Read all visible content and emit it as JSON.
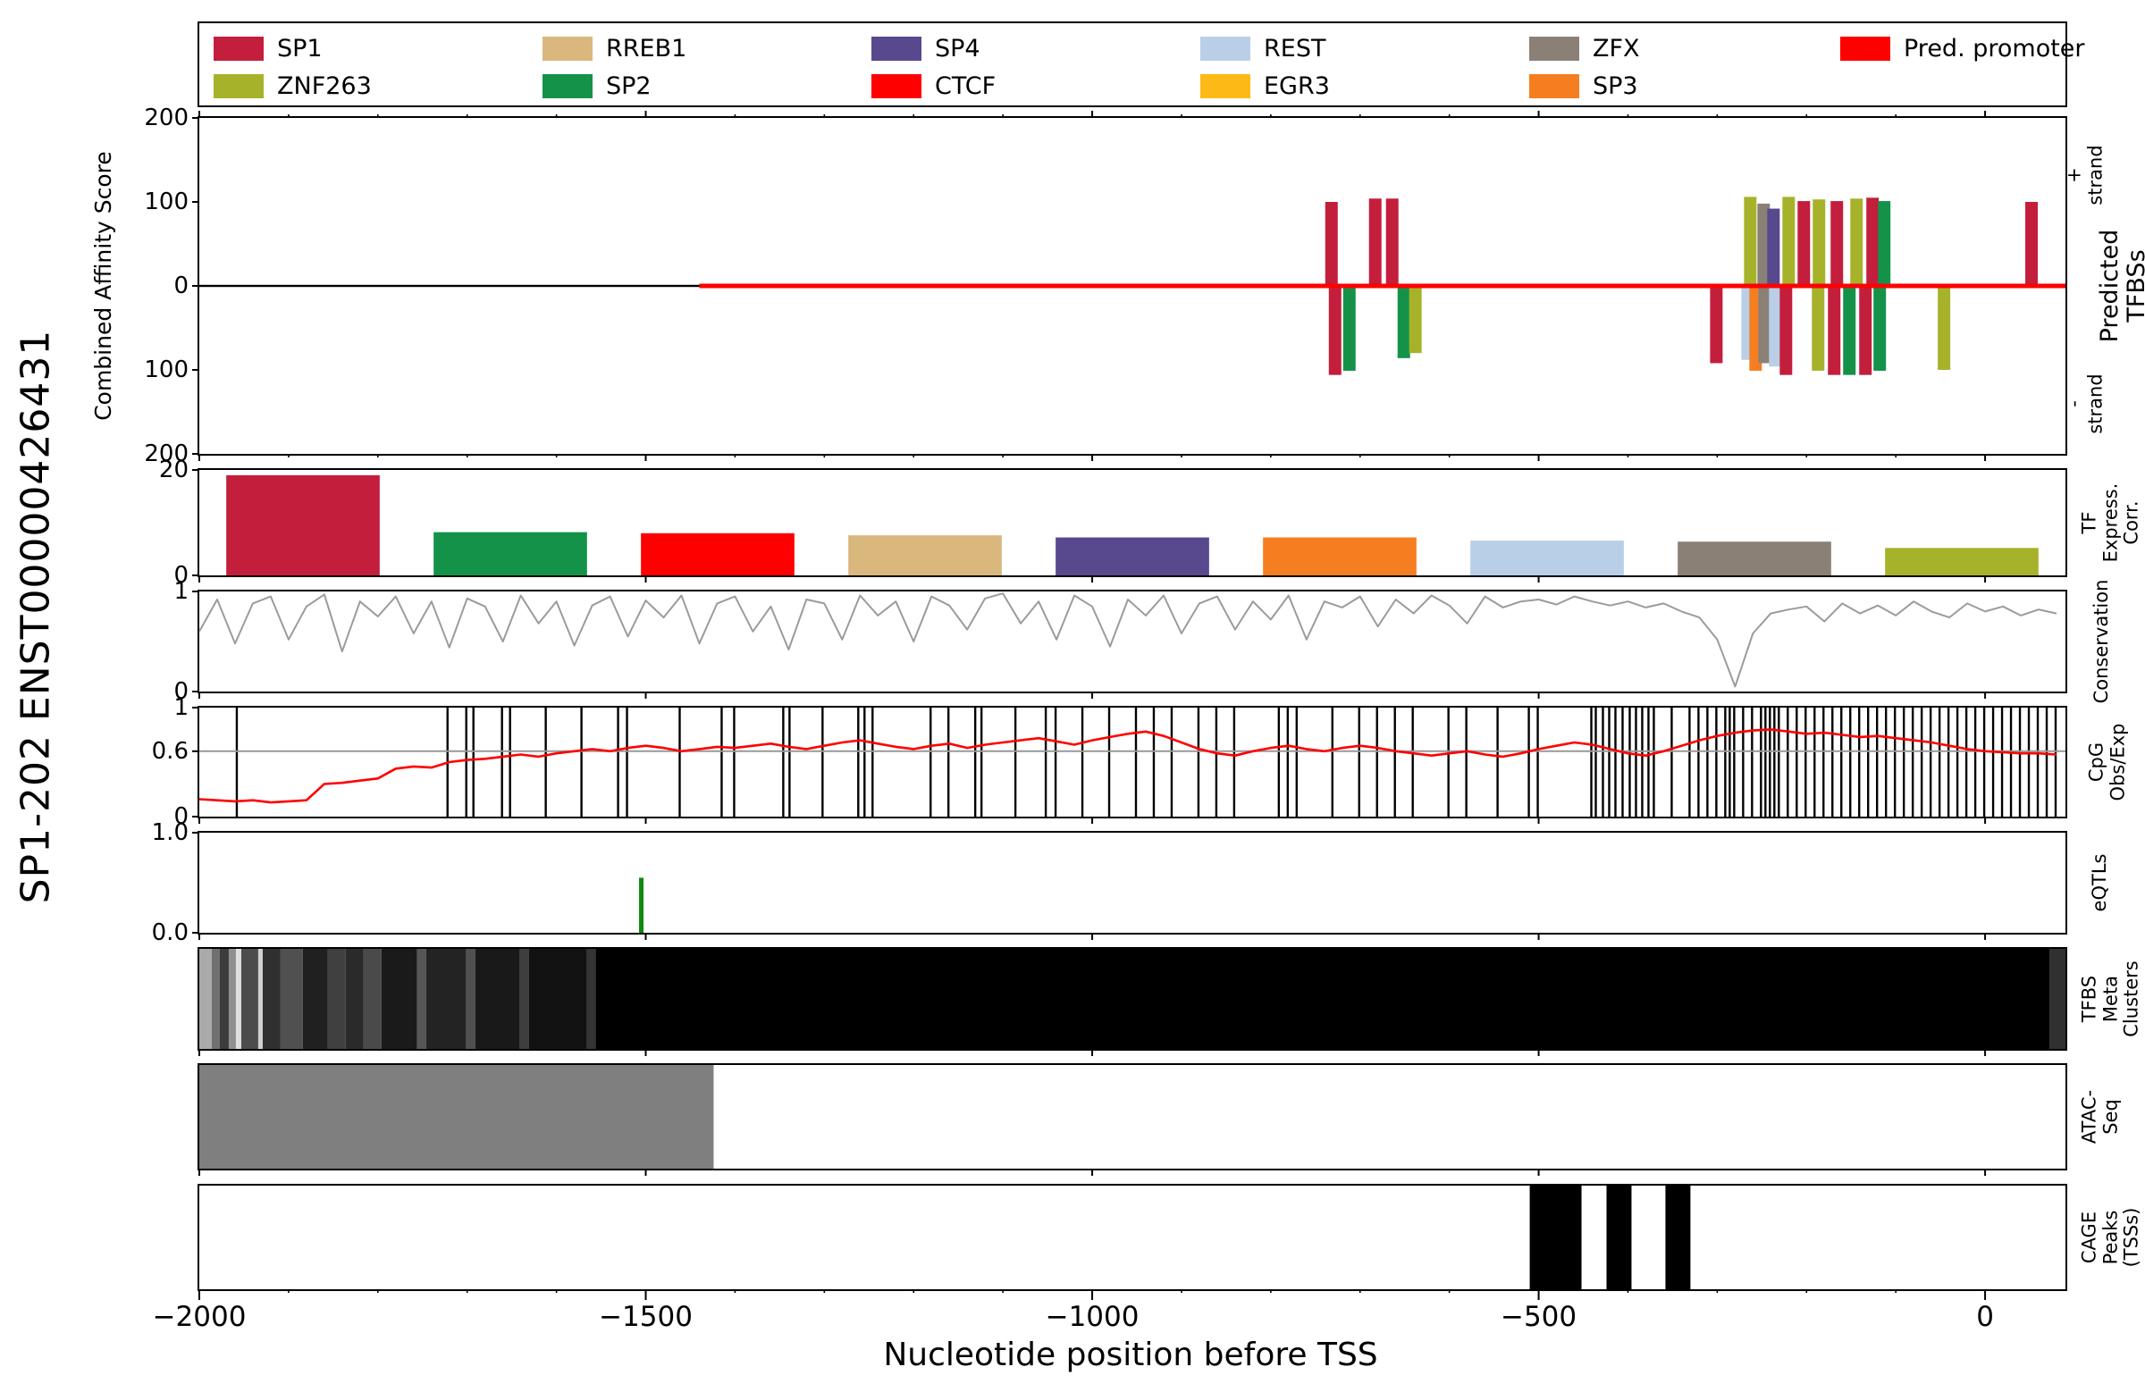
{
  "figure": {
    "transcript_label": "SP1-202 ENST00000426431",
    "xlabel": "Nucleotide position before TSS"
  },
  "colors": {
    "SP1": "#c41e3d",
    "ZNF263": "#a7b22b",
    "RREB1": "#d9b77d",
    "SP2": "#14924a",
    "SP4": "#58488e",
    "CTCF": "#ff0000",
    "REST": "#b9cfe8",
    "EGR3": "#fdb916",
    "ZFX": "#8b8076",
    "SP3": "#f57e20",
    "promoter": "#ff0000",
    "conservation": "#9b9b9b",
    "cpg_line": "#ff0000",
    "cpg_ref": "#999999",
    "eqtl": "#0f8a10",
    "atac": "#7f7f7f",
    "cage": "#000000"
  },
  "legend": {
    "items": [
      {
        "label": "SP1",
        "color": "#c41e3d",
        "row": 0,
        "col": 0
      },
      {
        "label": "RREB1",
        "color": "#d9b77d",
        "row": 0,
        "col": 1
      },
      {
        "label": "SP4",
        "color": "#58488e",
        "row": 0,
        "col": 2
      },
      {
        "label": "REST",
        "color": "#b9cfe8",
        "row": 0,
        "col": 3
      },
      {
        "label": "ZFX",
        "color": "#8b8076",
        "row": 0,
        "col": 4
      },
      {
        "label": "Pred. promoter",
        "color": "#ff0000",
        "row": 0,
        "col": 5
      },
      {
        "label": "ZNF263",
        "color": "#a7b22b",
        "row": 1,
        "col": 0
      },
      {
        "label": "SP2",
        "color": "#14924a",
        "row": 1,
        "col": 1
      },
      {
        "label": "CTCF",
        "color": "#ff0000",
        "row": 1,
        "col": 2
      },
      {
        "label": "EGR3",
        "color": "#fdb916",
        "row": 1,
        "col": 3
      },
      {
        "label": "SP3",
        "color": "#f57e20",
        "row": 1,
        "col": 4
      }
    ]
  },
  "panels": {
    "tfbs": {
      "label": "Predicted TFBSs",
      "strand_plus": "+ strand",
      "strand_minus": "- strand",
      "ylabel": "Combined Affinity Score",
      "yticks": [
        [
          200,
          "200"
        ],
        [
          100,
          "100"
        ],
        [
          0,
          "0"
        ],
        [
          -100,
          "100"
        ],
        [
          -200,
          "200"
        ]
      ]
    },
    "expr": {
      "label": "TF\nExpress.\nCorr.",
      "yticks": [
        [
          0,
          "0"
        ],
        [
          20,
          "20"
        ]
      ]
    },
    "cons": {
      "label": "Conservation",
      "yticks": [
        [
          0,
          "0"
        ],
        [
          1,
          "1"
        ]
      ]
    },
    "cpg": {
      "label": "CpG\nObs/Exp",
      "yticks": [
        [
          0,
          "0"
        ],
        [
          0.6,
          "0.6"
        ],
        [
          1,
          "1"
        ]
      ]
    },
    "eqtl": {
      "label": "eQTLs",
      "yticks": [
        [
          0,
          "0.0"
        ],
        [
          1,
          "1.0"
        ]
      ]
    },
    "meta": {
      "label": "TFBS\nMeta\nClusters",
      "yticks": []
    },
    "atac": {
      "label": "ATAC-Seq",
      "yticks": []
    },
    "cage": {
      "label": "CAGE\nPeaks\n(TSSs)",
      "yticks": []
    }
  },
  "chart_data": {
    "x_range": [
      -2000,
      90
    ],
    "x_major_ticks": [
      -2000,
      -1500,
      -1000,
      -500,
      0
    ],
    "x_tick_labels": [
      "−2000",
      "−1500",
      "−1000",
      "−500",
      "0"
    ],
    "x_minor_step": 100,
    "predicted_tfbs": {
      "type": "bar",
      "ylim": [
        -200,
        200
      ],
      "promoter": {
        "start": -1440,
        "end": 90,
        "y": 0
      },
      "bars": [
        {
          "tf": "SP1",
          "strand": "+",
          "pos": -732,
          "score": 100
        },
        {
          "tf": "SP1",
          "strand": "+",
          "pos": -683,
          "score": 104
        },
        {
          "tf": "SP1",
          "strand": "+",
          "pos": -664,
          "score": 104
        },
        {
          "tf": "ZNF263",
          "strand": "+",
          "pos": -263,
          "score": 106
        },
        {
          "tf": "ZFX",
          "strand": "+",
          "pos": -248,
          "score": 98
        },
        {
          "tf": "SP4",
          "strand": "+",
          "pos": -237,
          "score": 92
        },
        {
          "tf": "ZNF263",
          "strand": "+",
          "pos": -220,
          "score": 106
        },
        {
          "tf": "SP1",
          "strand": "+",
          "pos": -203,
          "score": 101
        },
        {
          "tf": "ZNF263",
          "strand": "+",
          "pos": -186,
          "score": 103
        },
        {
          "tf": "SP1",
          "strand": "+",
          "pos": -166,
          "score": 101
        },
        {
          "tf": "ZNF263",
          "strand": "+",
          "pos": -144,
          "score": 104
        },
        {
          "tf": "SP1",
          "strand": "+",
          "pos": -126,
          "score": 105
        },
        {
          "tf": "SP2",
          "strand": "+",
          "pos": -113,
          "score": 101
        },
        {
          "tf": "SP1",
          "strand": "+",
          "pos": 52,
          "score": 100
        },
        {
          "tf": "SP1",
          "strand": "-",
          "pos": -728,
          "score": 106
        },
        {
          "tf": "SP2",
          "strand": "-",
          "pos": -712,
          "score": 101
        },
        {
          "tf": "SP2",
          "strand": "-",
          "pos": -651,
          "score": 86
        },
        {
          "tf": "ZNF263",
          "strand": "-",
          "pos": -638,
          "score": 80
        },
        {
          "tf": "SP1",
          "strand": "-",
          "pos": -301,
          "score": 92
        },
        {
          "tf": "REST",
          "strand": "-",
          "pos": -266,
          "score": 88
        },
        {
          "tf": "SP3",
          "strand": "-",
          "pos": -257,
          "score": 101
        },
        {
          "tf": "ZFX",
          "strand": "-",
          "pos": -247,
          "score": 92
        },
        {
          "tf": "REST",
          "strand": "-",
          "pos": -235,
          "score": 96
        },
        {
          "tf": "SP1",
          "strand": "-",
          "pos": -223,
          "score": 106
        },
        {
          "tf": "ZNF263",
          "strand": "-",
          "pos": -187,
          "score": 101
        },
        {
          "tf": "SP1",
          "strand": "-",
          "pos": -169,
          "score": 106
        },
        {
          "tf": "SP2",
          "strand": "-",
          "pos": -152,
          "score": 106
        },
        {
          "tf": "SP1",
          "strand": "-",
          "pos": -134,
          "score": 106
        },
        {
          "tf": "SP2",
          "strand": "-",
          "pos": -118,
          "score": 101
        },
        {
          "tf": "ZNF263",
          "strand": "-",
          "pos": -46,
          "score": 100
        }
      ]
    },
    "tf_expression_correlation": {
      "type": "bar",
      "ylim": [
        0,
        20
      ],
      "categories": [
        "SP1",
        "SP2",
        "CTCF",
        "RREB1",
        "SP4",
        "SP3",
        "REST",
        "ZFX",
        "ZNF263"
      ],
      "values": [
        19,
        8.2,
        8,
        7.6,
        7.2,
        7.2,
        6.6,
        6.4,
        5.2
      ]
    },
    "conservation": {
      "type": "line",
      "ylim": [
        0,
        1
      ],
      "x_start": -2000,
      "x_step": 20,
      "values": [
        0.6,
        0.92,
        0.48,
        0.88,
        0.95,
        0.52,
        0.85,
        0.97,
        0.4,
        0.9,
        0.75,
        0.95,
        0.58,
        0.9,
        0.44,
        0.93,
        0.85,
        0.5,
        0.96,
        0.68,
        0.9,
        0.46,
        0.86,
        0.95,
        0.55,
        0.91,
        0.74,
        0.96,
        0.48,
        0.88,
        0.95,
        0.6,
        0.85,
        0.42,
        0.92,
        0.88,
        0.52,
        0.96,
        0.76,
        0.9,
        0.5,
        0.95,
        0.86,
        0.62,
        0.93,
        0.98,
        0.68,
        0.9,
        0.52,
        0.96,
        0.85,
        0.45,
        0.92,
        0.76,
        0.96,
        0.58,
        0.88,
        0.95,
        0.62,
        0.9,
        0.72,
        0.96,
        0.52,
        0.9,
        0.84,
        0.95,
        0.65,
        0.92,
        0.78,
        0.96,
        0.86,
        0.68,
        0.95,
        0.84,
        0.9,
        0.92,
        0.87,
        0.95,
        0.9,
        0.86,
        0.9,
        0.84,
        0.88,
        0.8,
        0.74,
        0.52,
        0.05,
        0.58,
        0.78,
        0.82,
        0.85,
        0.7,
        0.88,
        0.78,
        0.86,
        0.76,
        0.9,
        0.8,
        0.74,
        0.88,
        0.8,
        0.85,
        0.76,
        0.82,
        0.78
      ]
    },
    "cpg_obs_exp": {
      "type": "line",
      "ylim": [
        0,
        1
      ],
      "ref_y": 0.6,
      "x_start": -2000,
      "x_step": 20,
      "values": [
        0.16,
        0.15,
        0.14,
        0.15,
        0.13,
        0.14,
        0.15,
        0.3,
        0.31,
        0.33,
        0.35,
        0.44,
        0.46,
        0.45,
        0.5,
        0.52,
        0.53,
        0.55,
        0.57,
        0.55,
        0.58,
        0.6,
        0.62,
        0.6,
        0.63,
        0.65,
        0.63,
        0.6,
        0.62,
        0.64,
        0.63,
        0.65,
        0.67,
        0.64,
        0.62,
        0.65,
        0.68,
        0.7,
        0.67,
        0.64,
        0.62,
        0.65,
        0.67,
        0.63,
        0.66,
        0.68,
        0.7,
        0.72,
        0.69,
        0.66,
        0.7,
        0.73,
        0.76,
        0.78,
        0.74,
        0.68,
        0.62,
        0.58,
        0.56,
        0.6,
        0.63,
        0.65,
        0.62,
        0.6,
        0.63,
        0.65,
        0.63,
        0.6,
        0.58,
        0.56,
        0.58,
        0.6,
        0.57,
        0.55,
        0.58,
        0.62,
        0.65,
        0.68,
        0.66,
        0.62,
        0.58,
        0.56,
        0.6,
        0.65,
        0.7,
        0.74,
        0.77,
        0.79,
        0.8,
        0.78,
        0.76,
        0.77,
        0.75,
        0.73,
        0.74,
        0.72,
        0.7,
        0.68,
        0.65,
        0.62,
        0.6,
        0.59,
        0.58,
        0.58,
        0.57
      ],
      "site_positions": [
        -1958,
        -1722,
        -1701,
        -1693,
        -1661,
        -1652,
        -1612,
        -1572,
        -1531,
        -1521,
        -1462,
        -1415,
        -1401,
        -1346,
        -1339,
        -1302,
        -1262,
        -1255,
        -1246,
        -1181,
        -1161,
        -1131,
        -1124,
        -1086,
        -1052,
        -1041,
        -1011,
        -981,
        -951,
        -931,
        -911,
        -881,
        -861,
        -841,
        -791,
        -781,
        -771,
        -731,
        -701,
        -681,
        -661,
        -641,
        -601,
        -581,
        -546,
        -511,
        -501,
        -441,
        -436,
        -428,
        -421,
        -414,
        -406,
        -398,
        -391,
        -384,
        -377,
        -371,
        -351,
        -331,
        -321,
        -311,
        -301,
        -291,
        -286,
        -281,
        -271,
        -261,
        -251,
        -246,
        -241,
        -236,
        -231,
        -221,
        -211,
        -201,
        -191,
        -181,
        -171,
        -161,
        -151,
        -141,
        -131,
        -121,
        -111,
        -101,
        -91,
        -81,
        -71,
        -61,
        -51,
        -41,
        -31,
        -21,
        -11,
        -1,
        9,
        19,
        29,
        39,
        49,
        59,
        69,
        79
      ]
    },
    "eqtls": {
      "type": "bar",
      "ylim": [
        0,
        1
      ],
      "bars": [
        {
          "pos": -1505,
          "value": 0.55
        }
      ]
    },
    "tfbs_meta_clusters": {
      "type": "heatmap",
      "segments": [
        [
          -2000,
          -1986,
          "#aaaaaa"
        ],
        [
          -1986,
          -1977,
          "#707070"
        ],
        [
          -1977,
          -1967,
          "#3c3c3c"
        ],
        [
          -1967,
          -1959,
          "#909090"
        ],
        [
          -1959,
          -1953,
          "#e0e0e0"
        ],
        [
          -1953,
          -1934,
          "#4c4c4c"
        ],
        [
          -1934,
          -1929,
          "#d2d2d2"
        ],
        [
          -1929,
          -1909,
          "#303030"
        ],
        [
          -1909,
          -1884,
          "#505050"
        ],
        [
          -1884,
          -1856,
          "#202020"
        ],
        [
          -1856,
          -1836,
          "#404040"
        ],
        [
          -1836,
          -1816,
          "#2a2a2a"
        ],
        [
          -1816,
          -1796,
          "#4a4a4a"
        ],
        [
          -1796,
          -1756,
          "#1a1a1a"
        ],
        [
          -1756,
          -1746,
          "#565656"
        ],
        [
          -1746,
          -1701,
          "#232323"
        ],
        [
          -1701,
          -1691,
          "#505050"
        ],
        [
          -1691,
          -1641,
          "#191919"
        ],
        [
          -1641,
          -1631,
          "#3e3e3e"
        ],
        [
          -1631,
          -1566,
          "#121212"
        ],
        [
          -1566,
          -1556,
          "#343434"
        ],
        [
          -1556,
          72,
          "#000000"
        ],
        [
          72,
          90,
          "#303030"
        ]
      ]
    },
    "atac_seq": {
      "type": "area",
      "intervals": [
        [
          -2000,
          -1424
        ]
      ]
    },
    "cage_peaks": {
      "type": "bar",
      "intervals": [
        [
          -510,
          -452
        ],
        [
          -424,
          -396
        ],
        [
          -358,
          -330
        ]
      ]
    }
  }
}
